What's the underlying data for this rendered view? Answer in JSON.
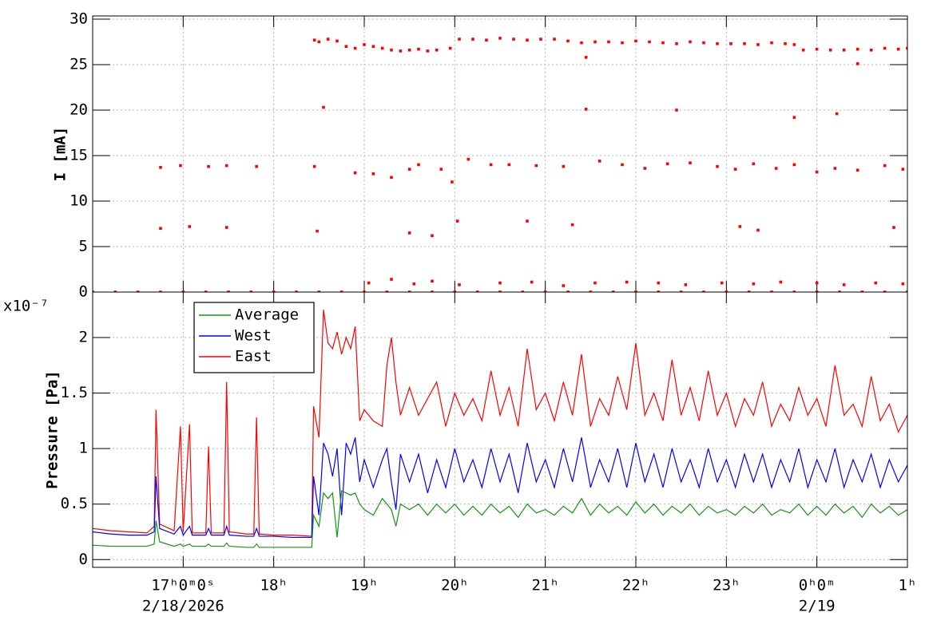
{
  "chart_data": [
    {
      "type": "scatter",
      "y_label": "I [mA]",
      "color": "#ff0000",
      "xlim": [
        16,
        25
      ],
      "xticks": [
        17,
        18,
        19,
        20,
        21,
        22,
        23,
        24,
        25
      ],
      "x_tick_labels": false,
      "ylim": [
        0,
        30.35
      ],
      "yticks": [
        0,
        5,
        10,
        15,
        20,
        25,
        30
      ],
      "grid": true,
      "x": [
        16.0,
        16.25,
        16.5,
        16.75,
        17.0,
        17.25,
        17.5,
        17.75,
        18.0,
        18.25,
        18.5,
        18.75,
        19.0,
        19.25,
        19.5,
        19.75,
        20.0,
        20.25,
        20.5,
        20.75,
        21.0,
        21.25,
        21.5,
        21.75,
        22.0,
        22.25,
        22.5,
        22.75,
        23.0,
        23.25,
        23.5,
        23.75,
        24.0,
        24.25,
        24.5,
        24.75,
        25.0,
        18.45,
        18.5,
        18.6,
        18.7,
        18.8,
        18.9,
        19.0,
        19.1,
        19.2,
        19.3,
        19.4,
        19.5,
        19.6,
        19.7,
        19.8,
        19.95,
        20.05,
        20.2,
        20.35,
        20.5,
        20.65,
        20.8,
        20.95,
        21.1,
        21.25,
        21.4,
        21.55,
        21.7,
        21.85,
        22.0,
        22.15,
        22.3,
        22.45,
        22.6,
        22.75,
        22.9,
        23.05,
        23.2,
        23.35,
        23.5,
        23.65,
        23.75,
        23.85,
        24.0,
        24.15,
        24.3,
        24.45,
        24.6,
        24.75,
        24.9,
        25.0,
        18.55,
        21.45,
        22.45,
        23.75,
        24.22,
        24.45,
        21.45,
        16.75,
        16.97,
        17.28,
        17.48,
        17.81,
        18.45,
        18.9,
        19.1,
        19.3,
        19.5,
        19.6,
        19.85,
        19.97,
        20.15,
        20.4,
        20.6,
        20.9,
        21.2,
        21.6,
        21.85,
        22.1,
        22.35,
        22.6,
        22.9,
        23.1,
        23.3,
        23.55,
        23.75,
        24.0,
        24.2,
        24.45,
        24.75,
        24.95,
        16.75,
        17.07,
        17.48,
        18.48,
        19.5,
        19.75,
        20.03,
        20.8,
        21.3,
        23.15,
        23.35,
        24.85,
        19.05,
        19.3,
        19.55,
        19.75,
        20.05,
        20.5,
        20.85,
        21.2,
        21.55,
        21.9,
        22.25,
        22.55,
        22.95,
        23.3,
        23.6,
        24.0,
        24.3,
        24.65,
        24.95
      ],
      "values": [
        0,
        0,
        0,
        0,
        0,
        0,
        0,
        0,
        0,
        0,
        0,
        0,
        0,
        0,
        0,
        0,
        0,
        0,
        0,
        0,
        0,
        0,
        0,
        0,
        0,
        0,
        0,
        0,
        0,
        0,
        0,
        0,
        0,
        0,
        0,
        0,
        0,
        27.7,
        27.5,
        27.8,
        27.6,
        27.0,
        26.8,
        27.2,
        27.0,
        26.8,
        26.6,
        26.5,
        26.6,
        26.7,
        26.5,
        26.6,
        26.8,
        27.8,
        27.8,
        27.7,
        27.9,
        27.8,
        27.7,
        27.8,
        27.8,
        27.6,
        27.4,
        27.5,
        27.5,
        27.4,
        27.6,
        27.5,
        27.4,
        27.3,
        27.5,
        27.4,
        27.3,
        27.3,
        27.3,
        27.2,
        27.4,
        27.3,
        27.2,
        26.6,
        26.7,
        26.6,
        26.6,
        26.7,
        26.6,
        26.8,
        26.7,
        26.8,
        20.3,
        20.1,
        20.0,
        19.2,
        19.6,
        25.1,
        25.8,
        13.7,
        13.9,
        13.8,
        13.9,
        13.8,
        13.8,
        13.1,
        13.0,
        12.6,
        13.5,
        14.0,
        13.5,
        12.1,
        14.6,
        14.0,
        14.0,
        13.9,
        13.8,
        14.4,
        14.0,
        13.6,
        14.1,
        14.2,
        13.8,
        13.5,
        14.1,
        13.6,
        14.0,
        13.2,
        13.6,
        13.4,
        13.9,
        13.5,
        7.0,
        7.2,
        7.1,
        6.7,
        6.5,
        6.2,
        7.8,
        7.8,
        7.4,
        7.2,
        6.8,
        7.1,
        1.0,
        1.4,
        0.9,
        1.2,
        0.8,
        1.0,
        1.1,
        0.7,
        1.0,
        1.1,
        1.0,
        0.8,
        1.0,
        0.9,
        1.1,
        1.0,
        0.8,
        1.0,
        0.9
      ]
    },
    {
      "type": "line",
      "y_label": "Pressure [Pa]",
      "y_multiplier": "x10⁻⁷",
      "xlim": [
        16,
        25
      ],
      "xticks": [
        {
          "value": 17,
          "label": "17ʰ0ᵐ0ˢ"
        },
        {
          "value": 18,
          "label": "18ʰ"
        },
        {
          "value": 19,
          "label": "19ʰ"
        },
        {
          "value": 20,
          "label": "20ʰ"
        },
        {
          "value": 21,
          "label": "21ʰ"
        },
        {
          "value": 22,
          "label": "22ʰ"
        },
        {
          "value": 23,
          "label": "23ʰ"
        },
        {
          "value": 24,
          "label": "0ʰ0ᵐ"
        },
        {
          "value": 25,
          "label": "1ʰ"
        }
      ],
      "x_tick_labels": true,
      "x_date_labels": [
        {
          "value": 17,
          "label": "2/18/2026"
        },
        {
          "value": 24,
          "label": "2/19"
        }
      ],
      "ylim": [
        -0.07,
        2.41
      ],
      "yticks": [
        0,
        0.5,
        1,
        1.5,
        2
      ],
      "grid": true,
      "legend": "upper left",
      "x": [
        16.0,
        16.2,
        16.4,
        16.6,
        16.68,
        16.7,
        16.74,
        16.9,
        16.97,
        17.0,
        17.07,
        17.1,
        17.25,
        17.28,
        17.31,
        17.45,
        17.48,
        17.51,
        17.7,
        17.78,
        17.81,
        17.84,
        18.0,
        18.2,
        18.42,
        18.44,
        18.5,
        18.55,
        18.6,
        18.65,
        18.7,
        18.75,
        18.8,
        18.85,
        18.9,
        18.95,
        19.0,
        19.1,
        19.2,
        19.25,
        19.3,
        19.35,
        19.4,
        19.5,
        19.6,
        19.7,
        19.8,
        19.9,
        20.0,
        20.1,
        20.2,
        20.3,
        20.4,
        20.5,
        20.6,
        20.7,
        20.8,
        20.9,
        21.0,
        21.1,
        21.2,
        21.3,
        21.4,
        21.5,
        21.6,
        21.7,
        21.8,
        21.9,
        22.0,
        22.1,
        22.2,
        22.3,
        22.4,
        22.5,
        22.6,
        22.7,
        22.8,
        22.9,
        23.0,
        23.1,
        23.2,
        23.3,
        23.4,
        23.5,
        23.6,
        23.7,
        23.8,
        23.9,
        24.0,
        24.1,
        24.2,
        24.3,
        24.4,
        24.5,
        24.6,
        24.7,
        24.8,
        24.9,
        25.0
      ],
      "series": [
        {
          "name": "Average",
          "color": "#159515",
          "values": [
            0.13,
            0.12,
            0.12,
            0.12,
            0.14,
            0.35,
            0.16,
            0.12,
            0.14,
            0.12,
            0.14,
            0.12,
            0.12,
            0.14,
            0.12,
            0.12,
            0.15,
            0.12,
            0.11,
            0.11,
            0.14,
            0.11,
            0.11,
            0.11,
            0.11,
            0.4,
            0.3,
            0.6,
            0.55,
            0.6,
            0.2,
            0.62,
            0.6,
            0.58,
            0.6,
            0.5,
            0.45,
            0.4,
            0.55,
            0.5,
            0.45,
            0.3,
            0.5,
            0.45,
            0.5,
            0.4,
            0.5,
            0.42,
            0.5,
            0.4,
            0.48,
            0.4,
            0.5,
            0.42,
            0.48,
            0.38,
            0.5,
            0.42,
            0.45,
            0.4,
            0.48,
            0.42,
            0.55,
            0.4,
            0.5,
            0.42,
            0.48,
            0.4,
            0.52,
            0.42,
            0.5,
            0.4,
            0.48,
            0.42,
            0.5,
            0.4,
            0.48,
            0.42,
            0.45,
            0.4,
            0.48,
            0.42,
            0.5,
            0.4,
            0.45,
            0.42,
            0.5,
            0.4,
            0.48,
            0.4,
            0.5,
            0.42,
            0.48,
            0.38,
            0.5,
            0.42,
            0.48,
            0.4,
            0.45
          ]
        },
        {
          "name": "West",
          "color": "#0000ff",
          "values": [
            0.25,
            0.23,
            0.22,
            0.22,
            0.25,
            0.75,
            0.28,
            0.23,
            0.3,
            0.22,
            0.3,
            0.22,
            0.22,
            0.28,
            0.22,
            0.22,
            0.3,
            0.22,
            0.21,
            0.21,
            0.28,
            0.21,
            0.21,
            0.2,
            0.2,
            0.75,
            0.4,
            1.05,
            0.95,
            0.75,
            1.0,
            0.4,
            1.05,
            0.95,
            1.1,
            0.7,
            0.9,
            0.65,
            0.9,
            1.0,
            0.7,
            0.45,
            0.95,
            0.7,
            0.95,
            0.6,
            0.9,
            0.65,
            1.0,
            0.7,
            0.9,
            0.65,
            1.0,
            0.7,
            0.95,
            0.6,
            1.05,
            0.7,
            0.9,
            0.65,
            1.0,
            0.7,
            1.1,
            0.65,
            0.9,
            0.7,
            1.0,
            0.65,
            1.05,
            0.7,
            0.95,
            0.65,
            1.0,
            0.7,
            0.9,
            0.65,
            1.0,
            0.7,
            0.9,
            0.65,
            0.95,
            0.7,
            0.95,
            0.65,
            0.9,
            0.7,
            1.0,
            0.65,
            0.9,
            0.7,
            1.0,
            0.65,
            0.9,
            0.7,
            0.95,
            0.65,
            0.9,
            0.7,
            0.85
          ]
        },
        {
          "name": "East",
          "color": "#ff0000",
          "values": [
            0.28,
            0.26,
            0.25,
            0.24,
            0.3,
            1.35,
            0.32,
            0.26,
            1.2,
            0.25,
            1.22,
            0.24,
            0.24,
            1.02,
            0.24,
            0.24,
            1.6,
            0.25,
            0.23,
            0.23,
            1.28,
            0.23,
            0.22,
            0.22,
            0.21,
            1.38,
            1.1,
            2.25,
            1.95,
            1.9,
            2.05,
            1.85,
            2.0,
            1.9,
            2.1,
            1.25,
            1.35,
            1.25,
            1.2,
            1.75,
            2.0,
            1.6,
            1.3,
            1.55,
            1.3,
            1.45,
            1.6,
            1.2,
            1.5,
            1.3,
            1.45,
            1.25,
            1.7,
            1.3,
            1.55,
            1.2,
            1.9,
            1.35,
            1.5,
            1.25,
            1.6,
            1.3,
            1.85,
            1.2,
            1.45,
            1.3,
            1.65,
            1.35,
            1.95,
            1.3,
            1.5,
            1.25,
            1.8,
            1.3,
            1.55,
            1.25,
            1.7,
            1.3,
            1.5,
            1.2,
            1.45,
            1.3,
            1.6,
            1.2,
            1.4,
            1.25,
            1.55,
            1.3,
            1.45,
            1.2,
            1.75,
            1.3,
            1.4,
            1.2,
            1.65,
            1.25,
            1.4,
            1.15,
            1.3
          ]
        }
      ]
    }
  ]
}
